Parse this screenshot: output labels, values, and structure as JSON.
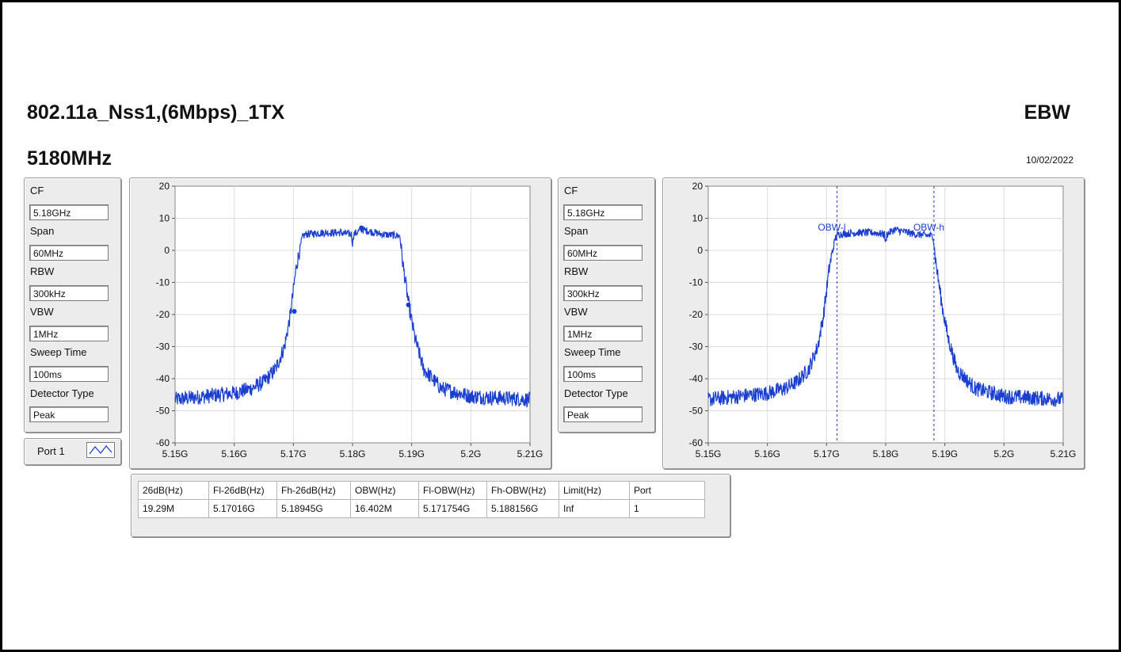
{
  "header": {
    "title": "802.11a_Nss1,(6Mbps)_1TX",
    "frequency": "5180MHz",
    "mode": "EBW",
    "date": "10/02/2022"
  },
  "settings": [
    {
      "label": "CF",
      "value": "5.18GHz"
    },
    {
      "label": "Span",
      "value": "60MHz"
    },
    {
      "label": "RBW",
      "value": "300kHz"
    },
    {
      "label": "VBW",
      "value": "1MHz"
    },
    {
      "label": "Sweep Time",
      "value": "100ms"
    },
    {
      "label": "Detector Type",
      "value": "Peak"
    }
  ],
  "port_selector": {
    "label": "Port 1",
    "icon": "waveform-icon"
  },
  "colors": {
    "trace": "#1a3fd0",
    "plot_bg": "#ffffff",
    "grid": "#ffffff",
    "panel": "#ececec"
  },
  "chart_data": [
    {
      "type": "line",
      "title": "",
      "xlabel": "",
      "ylabel": "",
      "xlim": [
        5.15,
        5.21
      ],
      "ylim": [
        -60,
        20
      ],
      "xticks": [
        "5.15G",
        "5.16G",
        "5.17G",
        "5.18G",
        "5.19G",
        "5.2G",
        "5.21G"
      ],
      "yticks": [
        "20",
        "10",
        "0",
        "-10",
        "-20",
        "-30",
        "-40",
        "-50",
        "-60"
      ],
      "series": [
        {
          "x": [
            5.15,
            5.155,
            5.16,
            5.163,
            5.165,
            5.167,
            5.1685,
            5.1695,
            5.1705,
            5.1715,
            5.172,
            5.175,
            5.178,
            5.1798,
            5.18,
            5.1802,
            5.1815,
            5.185,
            5.188,
            5.1885,
            5.1895,
            5.1905,
            5.192,
            5.195,
            5.2,
            5.21
          ],
          "y": [
            -46.5,
            -45.5,
            -44.5,
            -43,
            -41,
            -37,
            -30,
            -20,
            -5,
            4,
            5,
            5.5,
            5.5,
            5,
            2,
            5,
            6.5,
            5,
            4.5,
            -4,
            -17,
            -27,
            -37,
            -43,
            -45.5,
            -46.5
          ]
        }
      ],
      "markers": [
        {
          "x": 5.1815,
          "y": 7
        },
        {
          "x": 5.17016,
          "y": -19
        },
        {
          "x": 5.18945,
          "y": -17
        }
      ],
      "grid": true
    },
    {
      "type": "line",
      "title": "",
      "xlabel": "",
      "ylabel": "",
      "xlim": [
        5.15,
        5.21
      ],
      "ylim": [
        -60,
        20
      ],
      "xticks": [
        "5.15G",
        "5.16G",
        "5.17G",
        "5.18G",
        "5.19G",
        "5.2G",
        "5.21G"
      ],
      "yticks": [
        "20",
        "10",
        "0",
        "-10",
        "-20",
        "-30",
        "-40",
        "-50",
        "-60"
      ],
      "series": [
        {
          "x": [
            5.15,
            5.155,
            5.16,
            5.163,
            5.165,
            5.167,
            5.1685,
            5.1695,
            5.1705,
            5.1715,
            5.172,
            5.175,
            5.178,
            5.1798,
            5.18,
            5.1802,
            5.1815,
            5.185,
            5.188,
            5.1885,
            5.1895,
            5.1905,
            5.192,
            5.195,
            5.2,
            5.21
          ],
          "y": [
            -46.5,
            -45.5,
            -44.5,
            -43,
            -41,
            -37,
            -30,
            -20,
            -5,
            4,
            5,
            5.5,
            5.5,
            5,
            2,
            5,
            6.5,
            5,
            4.5,
            -4,
            -17,
            -27,
            -37,
            -43,
            -45.5,
            -46.5
          ]
        }
      ],
      "vlines": [
        {
          "x": 5.171754,
          "label": "OBW-l"
        },
        {
          "x": 5.188156,
          "label": "OBW-h"
        }
      ],
      "grid": true
    }
  ],
  "results_table": {
    "headers": [
      "26dB(Hz)",
      "Fl-26dB(Hz)",
      "Fh-26dB(Hz)",
      "OBW(Hz)",
      "Fl-OBW(Hz)",
      "Fh-OBW(Hz)",
      "Limit(Hz)",
      "Port"
    ],
    "rows": [
      [
        "19.29M",
        "5.17016G",
        "5.18945G",
        "16.402M",
        "5.171754G",
        "5.188156G",
        "Inf",
        "1"
      ]
    ]
  }
}
